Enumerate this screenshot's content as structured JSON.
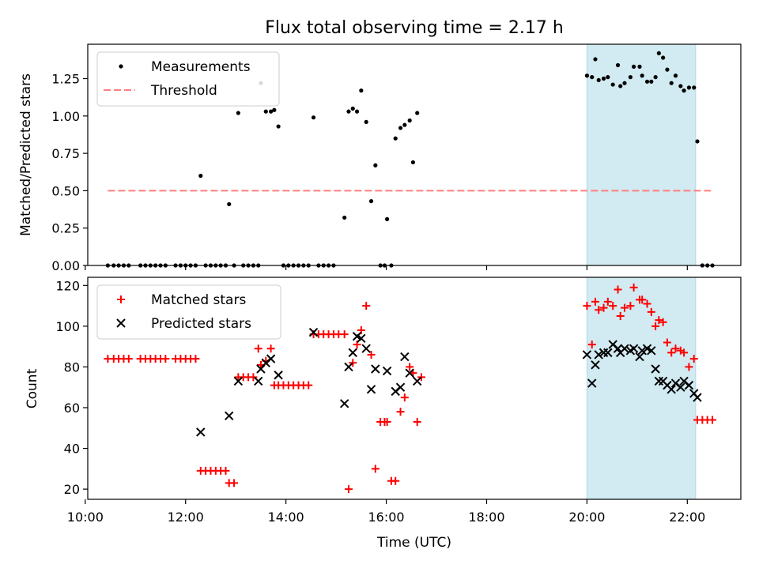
{
  "chart_data": [
    {
      "type": "scatter",
      "title": "Flux total observing time = 2.17 h",
      "ylabel": "Matched/Predicted stars",
      "xlabel": "",
      "xlim": [
        "10:03",
        "23:04"
      ],
      "ylim": [
        0,
        1.48
      ],
      "y_ticks": [
        "0.00",
        "0.25",
        "0.50",
        "0.75",
        "1.00",
        "1.25"
      ],
      "x_ticks": [
        "10:00",
        "12:00",
        "14:00",
        "16:00",
        "18:00",
        "20:00",
        "22:00"
      ],
      "show_x_tick_labels": false,
      "legend_position": "top-left",
      "highlight_span": [
        "20:00",
        "22:10"
      ],
      "series": [
        {
          "name": "Measurements",
          "marker": "dot",
          "color": "#000000",
          "points": [
            [
              "10:27",
              0
            ],
            [
              "10:34",
              0
            ],
            [
              "10:40",
              0
            ],
            [
              "10:46",
              0
            ],
            [
              "10:52",
              0
            ],
            [
              "11:06",
              0
            ],
            [
              "11:12",
              0
            ],
            [
              "11:18",
              0
            ],
            [
              "11:24",
              0
            ],
            [
              "11:30",
              0
            ],
            [
              "11:36",
              0
            ],
            [
              "11:48",
              0
            ],
            [
              "11:54",
              0
            ],
            [
              "12:00",
              0
            ],
            [
              "12:06",
              0
            ],
            [
              "12:12",
              0
            ],
            [
              "12:18",
              0.6
            ],
            [
              "12:24",
              0
            ],
            [
              "12:30",
              0
            ],
            [
              "12:36",
              0
            ],
            [
              "12:42",
              0
            ],
            [
              "12:48",
              0
            ],
            [
              "12:52",
              0.41
            ],
            [
              "12:58",
              0
            ],
            [
              "13:03",
              1.02
            ],
            [
              "13:09",
              0
            ],
            [
              "13:15",
              0
            ],
            [
              "13:21",
              0
            ],
            [
              "13:27",
              0
            ],
            [
              "13:30",
              1.22
            ],
            [
              "13:36",
              1.03
            ],
            [
              "13:42",
              1.03
            ],
            [
              "13:46",
              1.04
            ],
            [
              "13:51",
              0.93
            ],
            [
              "13:57",
              0
            ],
            [
              "14:03",
              0
            ],
            [
              "14:09",
              0
            ],
            [
              "14:15",
              0
            ],
            [
              "14:21",
              0
            ],
            [
              "14:27",
              0
            ],
            [
              "14:33",
              0.99
            ],
            [
              "14:39",
              0
            ],
            [
              "14:45",
              0
            ],
            [
              "14:51",
              0
            ],
            [
              "14:57",
              0
            ],
            [
              "15:10",
              0.32
            ],
            [
              "15:15",
              1.03
            ],
            [
              "15:20",
              1.05
            ],
            [
              "15:25",
              1.03
            ],
            [
              "15:30",
              1.17
            ],
            [
              "15:36",
              0.96
            ],
            [
              "15:42",
              0.43
            ],
            [
              "15:47",
              0.67
            ],
            [
              "15:53",
              0
            ],
            [
              "15:58",
              0
            ],
            [
              "16:01",
              0.31
            ],
            [
              "16:06",
              0
            ],
            [
              "16:11",
              0.85
            ],
            [
              "16:17",
              0.92
            ],
            [
              "16:22",
              0.94
            ],
            [
              "16:28",
              0.97
            ],
            [
              "16:32",
              0.69
            ],
            [
              "16:37",
              1.02
            ],
            [
              "20:00",
              1.27
            ],
            [
              "20:06",
              1.26
            ],
            [
              "20:10",
              1.38
            ],
            [
              "20:14",
              1.24
            ],
            [
              "20:20",
              1.25
            ],
            [
              "20:25",
              1.26
            ],
            [
              "20:31",
              1.21
            ],
            [
              "20:37",
              1.34
            ],
            [
              "20:40",
              1.2
            ],
            [
              "20:45",
              1.22
            ],
            [
              "20:52",
              1.26
            ],
            [
              "20:56",
              1.33
            ],
            [
              "21:03",
              1.33
            ],
            [
              "21:06",
              1.27
            ],
            [
              "21:12",
              1.23
            ],
            [
              "21:17",
              1.23
            ],
            [
              "21:22",
              1.26
            ],
            [
              "21:26",
              1.42
            ],
            [
              "21:31",
              1.39
            ],
            [
              "21:36",
              1.31
            ],
            [
              "21:41",
              1.22
            ],
            [
              "21:46",
              1.27
            ],
            [
              "21:52",
              1.2
            ],
            [
              "21:56",
              1.17
            ],
            [
              "22:02",
              1.19
            ],
            [
              "22:08",
              1.19
            ],
            [
              "22:12",
              0.83
            ],
            [
              "22:18",
              0
            ],
            [
              "22:24",
              0
            ],
            [
              "22:30",
              0
            ]
          ]
        }
      ],
      "threshold": {
        "name": "Threshold",
        "value": 0.5,
        "x_range": [
          "10:27",
          "22:30"
        ],
        "color": "#ff7f7f"
      }
    },
    {
      "type": "scatter",
      "title": "",
      "ylabel": "Count",
      "xlabel": "Time (UTC)",
      "xlim": [
        "10:03",
        "23:04"
      ],
      "ylim": [
        15,
        124
      ],
      "y_ticks": [
        "20",
        "40",
        "60",
        "80",
        "100",
        "120"
      ],
      "x_ticks": [
        "10:00",
        "12:00",
        "14:00",
        "16:00",
        "18:00",
        "20:00",
        "22:00"
      ],
      "show_x_tick_labels": true,
      "legend_position": "top-left",
      "highlight_span": [
        "20:00",
        "22:10"
      ],
      "series": [
        {
          "name": "Matched stars",
          "marker": "plus",
          "color": "#ff0000",
          "points": [
            [
              "10:27",
              84
            ],
            [
              "10:34",
              84
            ],
            [
              "10:40",
              84
            ],
            [
              "10:46",
              84
            ],
            [
              "10:52",
              84
            ],
            [
              "11:06",
              84
            ],
            [
              "11:12",
              84
            ],
            [
              "11:18",
              84
            ],
            [
              "11:24",
              84
            ],
            [
              "11:30",
              84
            ],
            [
              "11:36",
              84
            ],
            [
              "11:48",
              84
            ],
            [
              "11:54",
              84
            ],
            [
              "12:00",
              84
            ],
            [
              "12:06",
              84
            ],
            [
              "12:12",
              84
            ],
            [
              "12:18",
              29
            ],
            [
              "12:24",
              29
            ],
            [
              "12:30",
              29
            ],
            [
              "12:36",
              29
            ],
            [
              "12:42",
              29
            ],
            [
              "12:48",
              29
            ],
            [
              "12:52",
              23
            ],
            [
              "12:58",
              23
            ],
            [
              "13:03",
              75
            ],
            [
              "13:09",
              75
            ],
            [
              "13:15",
              75
            ],
            [
              "13:21",
              75
            ],
            [
              "13:27",
              89
            ],
            [
              "13:30",
              81
            ],
            [
              "13:36",
              83
            ],
            [
              "13:42",
              89
            ],
            [
              "13:46",
              71
            ],
            [
              "13:51",
              71
            ],
            [
              "13:57",
              71
            ],
            [
              "14:03",
              71
            ],
            [
              "14:09",
              71
            ],
            [
              "14:15",
              71
            ],
            [
              "14:21",
              71
            ],
            [
              "14:27",
              71
            ],
            [
              "14:33",
              96
            ],
            [
              "14:39",
              96
            ],
            [
              "14:45",
              96
            ],
            [
              "14:51",
              96
            ],
            [
              "14:57",
              96
            ],
            [
              "15:03",
              96
            ],
            [
              "15:10",
              96
            ],
            [
              "15:15",
              20
            ],
            [
              "15:20",
              82
            ],
            [
              "15:25",
              91
            ],
            [
              "15:30",
              98
            ],
            [
              "15:36",
              110
            ],
            [
              "15:42",
              86
            ],
            [
              "15:47",
              30
            ],
            [
              "15:53",
              53
            ],
            [
              "15:58",
              53
            ],
            [
              "16:01",
              53
            ],
            [
              "16:06",
              24
            ],
            [
              "16:11",
              24
            ],
            [
              "16:17",
              58
            ],
            [
              "16:22",
              65
            ],
            [
              "16:28",
              80
            ],
            [
              "16:32",
              77
            ],
            [
              "16:37",
              53
            ],
            [
              "16:42",
              75
            ],
            [
              "20:00",
              110
            ],
            [
              "20:06",
              91
            ],
            [
              "20:10",
              112
            ],
            [
              "20:14",
              108
            ],
            [
              "20:20",
              109
            ],
            [
              "20:25",
              112
            ],
            [
              "20:31",
              110
            ],
            [
              "20:37",
              118
            ],
            [
              "20:40",
              105
            ],
            [
              "20:45",
              109
            ],
            [
              "20:52",
              110
            ],
            [
              "20:56",
              119
            ],
            [
              "21:03",
              113
            ],
            [
              "21:06",
              113
            ],
            [
              "21:12",
              111
            ],
            [
              "21:17",
              107
            ],
            [
              "21:22",
              100
            ],
            [
              "21:26",
              103
            ],
            [
              "21:31",
              102
            ],
            [
              "21:36",
              92
            ],
            [
              "21:41",
              87
            ],
            [
              "21:46",
              89
            ],
            [
              "21:52",
              88
            ],
            [
              "21:56",
              87
            ],
            [
              "22:02",
              80
            ],
            [
              "22:08",
              84
            ],
            [
              "22:12",
              54
            ],
            [
              "22:18",
              54
            ],
            [
              "22:24",
              54
            ],
            [
              "22:30",
              54
            ]
          ]
        },
        {
          "name": "Predicted stars",
          "marker": "x",
          "color": "#000000",
          "points": [
            [
              "12:18",
              48
            ],
            [
              "12:52",
              56
            ],
            [
              "13:03",
              73
            ],
            [
              "13:27",
              73
            ],
            [
              "13:30",
              79
            ],
            [
              "13:36",
              82
            ],
            [
              "13:42",
              84
            ],
            [
              "13:51",
              76
            ],
            [
              "14:33",
              97
            ],
            [
              "15:10",
              62
            ],
            [
              "15:15",
              80
            ],
            [
              "15:20",
              87
            ],
            [
              "15:25",
              95
            ],
            [
              "15:30",
              94
            ],
            [
              "15:36",
              89
            ],
            [
              "15:42",
              69
            ],
            [
              "15:47",
              79
            ],
            [
              "16:01",
              78
            ],
            [
              "16:11",
              68
            ],
            [
              "16:17",
              70
            ],
            [
              "16:22",
              85
            ],
            [
              "16:28",
              77
            ],
            [
              "16:37",
              73
            ],
            [
              "20:00",
              86
            ],
            [
              "20:06",
              72
            ],
            [
              "20:10",
              81
            ],
            [
              "20:14",
              86
            ],
            [
              "20:20",
              87
            ],
            [
              "20:25",
              87
            ],
            [
              "20:31",
              91
            ],
            [
              "20:37",
              89
            ],
            [
              "20:40",
              87
            ],
            [
              "20:45",
              89
            ],
            [
              "20:52",
              88
            ],
            [
              "20:56",
              89
            ],
            [
              "21:03",
              85
            ],
            [
              "21:06",
              88
            ],
            [
              "21:12",
              89
            ],
            [
              "21:17",
              88
            ],
            [
              "21:22",
              79
            ],
            [
              "21:26",
              73
            ],
            [
              "21:31",
              73
            ],
            [
              "21:36",
              71
            ],
            [
              "21:41",
              69
            ],
            [
              "21:46",
              72
            ],
            [
              "21:52",
              70
            ],
            [
              "21:56",
              73
            ],
            [
              "22:02",
              71
            ],
            [
              "22:08",
              67
            ],
            [
              "22:12",
              65
            ]
          ]
        }
      ]
    }
  ],
  "colors": {
    "span": "#add8e6",
    "axis": "#000000"
  }
}
